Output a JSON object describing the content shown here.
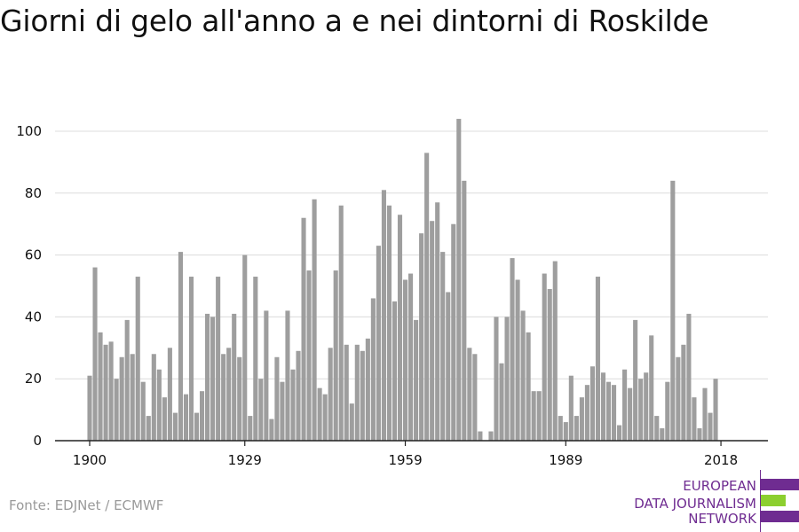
{
  "title": "Giorni di gelo all'anno a e nei dintorni di Roskilde",
  "source": "Fonte: EDJNet / ECMWF",
  "logo": {
    "lines": [
      "EUROPEAN",
      "DATA JOURNALISM",
      "NETWORK"
    ],
    "colors": {
      "purple": "#6f2c91",
      "green": "#8ccf2f"
    }
  },
  "colors": {
    "bar": "#9e9e9e",
    "grid": "#dcdcdc",
    "axis": "#222222",
    "text": "#111111"
  },
  "chart_data": {
    "type": "bar",
    "xlabel": "",
    "ylabel": "",
    "ylim": [
      0,
      110
    ],
    "y_ticks": [
      0,
      20,
      40,
      60,
      80,
      100
    ],
    "x_ticks": [
      1900,
      1929,
      1959,
      1989,
      2018
    ],
    "grid": true,
    "years": [
      1900,
      1901,
      1902,
      1903,
      1904,
      1905,
      1906,
      1907,
      1908,
      1909,
      1910,
      1911,
      1912,
      1913,
      1914,
      1915,
      1916,
      1917,
      1918,
      1919,
      1920,
      1921,
      1922,
      1923,
      1924,
      1925,
      1926,
      1927,
      1928,
      1929,
      1930,
      1931,
      1932,
      1933,
      1934,
      1935,
      1936,
      1937,
      1938,
      1939,
      1940,
      1941,
      1942,
      1943,
      1944,
      1945,
      1946,
      1947,
      1948,
      1949,
      1950,
      1951,
      1952,
      1953,
      1954,
      1955,
      1956,
      1957,
      1958,
      1959,
      1960,
      1961,
      1962,
      1963,
      1964,
      1965,
      1966,
      1967,
      1968,
      1969,
      1970,
      1971,
      1972,
      1973,
      1974,
      1975,
      1976,
      1977,
      1978,
      1979,
      1980,
      1981,
      1982,
      1983,
      1984,
      1985,
      1986,
      1987,
      1988,
      1989,
      1990,
      1991,
      1992,
      1993,
      1994,
      1995,
      1996,
      1997,
      1998,
      1999,
      2000,
      2001,
      2002,
      2003,
      2004,
      2005,
      2006,
      2007,
      2008,
      2009,
      2010,
      2011,
      2012,
      2013,
      2014,
      2015,
      2016,
      2017,
      2018
    ],
    "values": [
      21,
      56,
      35,
      31,
      32,
      20,
      27,
      39,
      28,
      53,
      19,
      8,
      28,
      23,
      14,
      30,
      9,
      61,
      15,
      53,
      9,
      16,
      41,
      40,
      53,
      28,
      30,
      41,
      27,
      60,
      8,
      53,
      20,
      42,
      7,
      27,
      19,
      42,
      23,
      29,
      72,
      55,
      78,
      17,
      15,
      30,
      55,
      76,
      31,
      12,
      31,
      29,
      33,
      46,
      63,
      81,
      76,
      45,
      73,
      52,
      54,
      39,
      67,
      93,
      71,
      77,
      61,
      48,
      70,
      104,
      84,
      30,
      28,
      3,
      0,
      3,
      40,
      25,
      40,
      59,
      52,
      42,
      35,
      16,
      16,
      54,
      49,
      58,
      8,
      6,
      21,
      8,
      14,
      18,
      24,
      53,
      22,
      19,
      18,
      5,
      23,
      17,
      39,
      20,
      22,
      34,
      8,
      4,
      19,
      84,
      27,
      31,
      41,
      14,
      4,
      17,
      9,
      20,
      0
    ]
  }
}
